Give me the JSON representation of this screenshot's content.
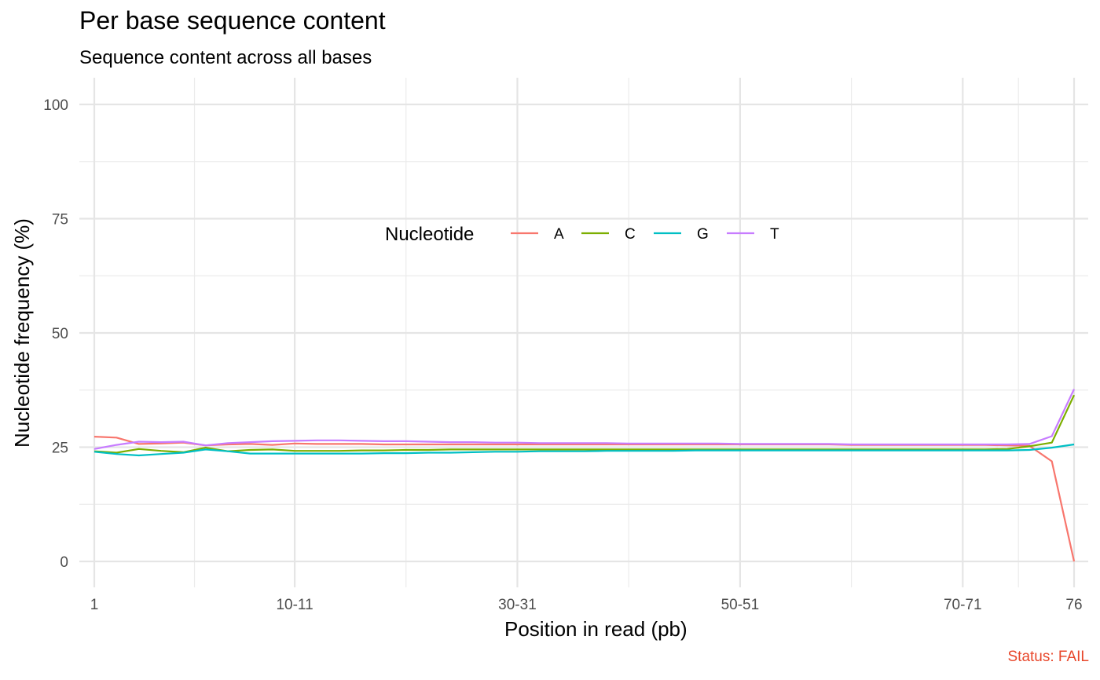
{
  "chart_data": {
    "type": "line",
    "title": "Per base sequence content",
    "subtitle": "Sequence content across all bases",
    "xlabel": "Position in read (pb)",
    "ylabel": "Nucleotide frequency (%)",
    "ylim": [
      0,
      100
    ],
    "y_ticks": [
      0,
      25,
      50,
      75,
      100
    ],
    "x_ticks": [
      "1",
      "10-11",
      "30-31",
      "50-51",
      "70-71",
      "76"
    ],
    "categories": [
      "1",
      "2",
      "3",
      "4",
      "5",
      "6",
      "7",
      "8",
      "9",
      "10-11",
      "12-13",
      "14-15",
      "16-17",
      "18-19",
      "20-21",
      "22-23",
      "24-25",
      "26-27",
      "28-29",
      "30-31",
      "32-33",
      "34-35",
      "36-37",
      "38-39",
      "40-41",
      "42-43",
      "44-45",
      "46-47",
      "48-49",
      "50-51",
      "52-53",
      "54-55",
      "56-57",
      "58-59",
      "60-61",
      "62-63",
      "64-65",
      "66-67",
      "68-69",
      "70-71",
      "72",
      "73",
      "74",
      "75",
      "76"
    ],
    "legend": {
      "title": "Nucleotide",
      "position": "inside-top"
    },
    "grid": true,
    "series": [
      {
        "name": "A",
        "color": "#f8766d",
        "values": [
          27.3,
          27.1,
          25.7,
          25.8,
          26.0,
          25.4,
          25.6,
          25.7,
          25.5,
          25.8,
          25.7,
          25.7,
          25.7,
          25.6,
          25.6,
          25.6,
          25.6,
          25.6,
          25.6,
          25.6,
          25.6,
          25.6,
          25.6,
          25.6,
          25.6,
          25.6,
          25.6,
          25.6,
          25.6,
          25.6,
          25.6,
          25.6,
          25.6,
          25.6,
          25.5,
          25.5,
          25.5,
          25.5,
          25.5,
          25.5,
          25.5,
          25.4,
          25.3,
          21.9,
          0.0
        ]
      },
      {
        "name": "C",
        "color": "#7cae00",
        "values": [
          24.1,
          23.8,
          24.6,
          24.2,
          23.9,
          24.9,
          24.1,
          24.4,
          24.5,
          24.2,
          24.2,
          24.2,
          24.3,
          24.3,
          24.4,
          24.4,
          24.5,
          24.5,
          24.5,
          24.5,
          24.5,
          24.5,
          24.5,
          24.5,
          24.5,
          24.5,
          24.5,
          24.5,
          24.5,
          24.5,
          24.5,
          24.5,
          24.5,
          24.5,
          24.5,
          24.5,
          24.5,
          24.5,
          24.5,
          24.5,
          24.5,
          24.6,
          25.2,
          26.0,
          36.4
        ]
      },
      {
        "name": "G",
        "color": "#00bfc4",
        "values": [
          24.0,
          23.5,
          23.2,
          23.5,
          23.8,
          24.5,
          24.1,
          23.6,
          23.6,
          23.6,
          23.6,
          23.6,
          23.6,
          23.7,
          23.7,
          23.8,
          23.8,
          23.9,
          24.0,
          24.0,
          24.1,
          24.1,
          24.1,
          24.2,
          24.2,
          24.2,
          24.2,
          24.3,
          24.3,
          24.3,
          24.3,
          24.3,
          24.3,
          24.3,
          24.3,
          24.3,
          24.3,
          24.3,
          24.3,
          24.3,
          24.3,
          24.3,
          24.4,
          24.9,
          25.6
        ]
      },
      {
        "name": "T",
        "color": "#c77cff",
        "values": [
          24.6,
          25.5,
          26.2,
          26.1,
          26.2,
          25.4,
          25.9,
          26.1,
          26.3,
          26.4,
          26.5,
          26.5,
          26.4,
          26.3,
          26.3,
          26.2,
          26.1,
          26.1,
          26.0,
          26.0,
          25.9,
          25.9,
          25.9,
          25.9,
          25.8,
          25.8,
          25.8,
          25.8,
          25.8,
          25.7,
          25.7,
          25.7,
          25.7,
          25.7,
          25.6,
          25.6,
          25.6,
          25.6,
          25.6,
          25.6,
          25.6,
          25.6,
          25.7,
          27.4,
          37.7
        ]
      }
    ]
  },
  "status_text": "Status: FAIL"
}
